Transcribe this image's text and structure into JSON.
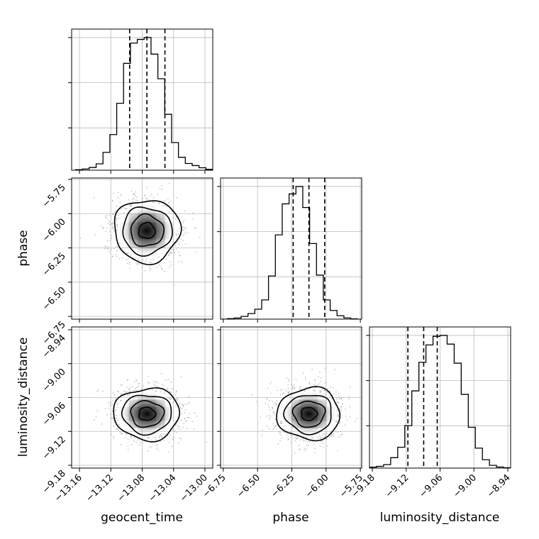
{
  "figure": {
    "background": "#ffffff",
    "line_color": "#000000",
    "grid_color": "#bbbbbb",
    "point_color": "#999999"
  },
  "chart_data": {
    "type": "corner",
    "parameters": [
      "geocent_time",
      "phase",
      "luminosity_distance"
    ],
    "ranges": {
      "geocent_time": [
        -13.17,
        -12.99
      ],
      "phase": [
        -6.77,
        -5.74
      ],
      "luminosity_distance": [
        -9.185,
        -8.935
      ]
    },
    "ticks": {
      "geocent_time": [
        -13.16,
        -13.12,
        -13.08,
        -13.04,
        -13.0
      ],
      "phase": [
        -6.75,
        -6.5,
        -6.25,
        -6.0,
        -5.75
      ],
      "luminosity_distance": [
        -9.18,
        -9.12,
        -9.06,
        -9.0,
        -8.94
      ]
    },
    "tick_labels": {
      "geocent_time": [
        "−13.16",
        "−13.12",
        "−13.08",
        "−13.04",
        "−13.00"
      ],
      "phase": [
        "−6.75",
        "−6.50",
        "−6.25",
        "−6.00",
        "−5.75"
      ],
      "luminosity_distance": [
        "−9.18",
        "−9.12",
        "−9.06",
        "−9.00",
        "−8.94"
      ]
    },
    "axis_labels": {
      "x": [
        "geocent_time",
        "phase",
        "luminosity_distance"
      ],
      "y": [
        "phase",
        "luminosity_distance"
      ]
    },
    "quantile_lines": {
      "geocent_time": [
        -13.096,
        -13.074,
        -13.051
      ],
      "phase": [
        -6.24,
        -6.125,
        -6.01
      ],
      "luminosity_distance": [
        -9.117,
        -9.089,
        -9.065
      ]
    },
    "histograms": {
      "geocent_time": {
        "edges_start": -13.165,
        "bin_width": 0.00875,
        "counts": [
          4,
          10,
          22,
          52,
          145,
          290,
          545,
          870,
          1035,
          1065,
          1080,
          945,
          745,
          455,
          225,
          105,
          55,
          38,
          20,
          7,
          3
        ]
      },
      "phase": {
        "edges_start": -6.77,
        "bin_width": 0.05,
        "counts": [
          0,
          4,
          9,
          22,
          45,
          80,
          155,
          348,
          680,
          930,
          1010,
          1070,
          900,
          610,
          355,
          155,
          70,
          28,
          10,
          2
        ]
      },
      "luminosity_distance": {
        "edges_start": -9.185,
        "bin_width": 0.0125,
        "counts": [
          5,
          10,
          20,
          60,
          120,
          245,
          445,
          610,
          710,
          760,
          765,
          715,
          605,
          425,
          235,
          115,
          48,
          16,
          6,
          2
        ]
      }
    },
    "hist_yticks_fraction": [
      0.3,
      0.62,
      0.94
    ],
    "pair_panels": [
      {
        "x": "geocent_time",
        "y": "phase",
        "mean": [
          -13.074,
          -6.125
        ],
        "sd": [
          0.021,
          0.115
        ]
      },
      {
        "x": "geocent_time",
        "y": "luminosity_distance",
        "mean": [
          -13.074,
          -9.089
        ],
        "sd": [
          0.021,
          0.023
        ]
      },
      {
        "x": "phase",
        "y": "luminosity_distance",
        "mean": [
          -6.125,
          -9.089
        ],
        "sd": [
          0.115,
          0.023
        ]
      }
    ],
    "contour_levels_sigma": [
      0.5,
      1.0,
      1.5,
      2.0
    ],
    "grid": true,
    "dashed_quantile_lines": true
  }
}
